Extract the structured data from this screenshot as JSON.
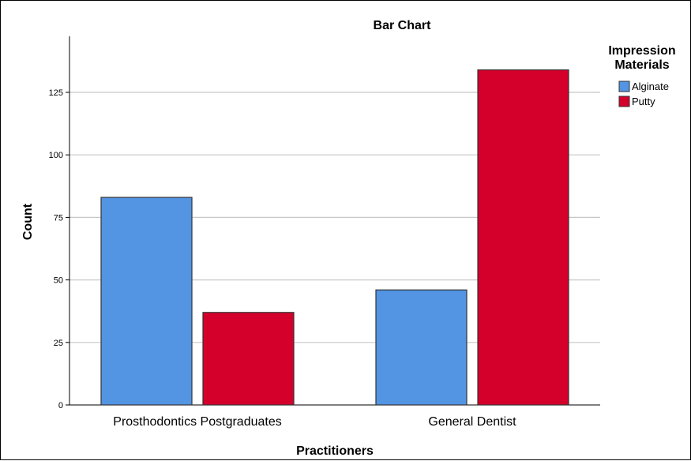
{
  "chart_data": {
    "type": "bar",
    "title": "Bar Chart",
    "xlabel": "Practitioners",
    "ylabel": "Count",
    "categories": [
      "Prosthodontics Postgraduates",
      "General Dentist"
    ],
    "series": [
      {
        "name": "Alginate",
        "values": [
          83,
          46
        ],
        "color": "#5394e3"
      },
      {
        "name": "Putty",
        "values": [
          37,
          134
        ],
        "color": "#d4002b"
      }
    ],
    "ylim": [
      0,
      140
    ],
    "yticks": [
      0,
      25,
      50,
      75,
      100,
      125
    ],
    "grid": true,
    "legend": {
      "title_lines": [
        "Impression",
        "Materials"
      ],
      "position": "top-right"
    }
  }
}
